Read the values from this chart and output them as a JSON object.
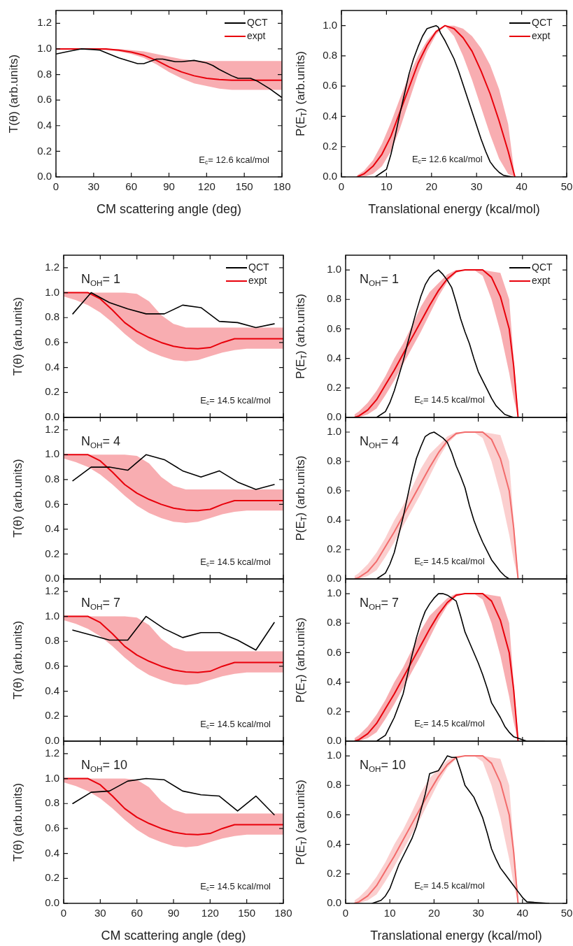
{
  "chart_data": [
    {
      "type": "line",
      "xlabel": "CM scattering angle (deg)",
      "ylabel": "T(θ) (arb.units)",
      "annotations": [
        "E$_{c}$= 12.6 kcal/mol"
      ],
      "legend": "top right",
      "xlim": [
        0,
        180
      ],
      "xticks": [
        0,
        30,
        60,
        90,
        120,
        150,
        180
      ],
      "ylim": [
        0,
        1.3
      ],
      "yticks": [
        {
          "value": 0,
          "label": "0.0"
        },
        {
          "value": 0.2,
          "label": "0.2"
        },
        {
          "value": 0.4,
          "label": "0.4"
        },
        {
          "value": 0.6,
          "label": "0.6"
        },
        {
          "value": 0.8,
          "label": "0.8"
        },
        {
          "value": 1,
          "label": "1.0"
        },
        {
          "value": 1.2,
          "label": "1.2"
        }
      ],
      "series": [
        {
          "name": "QCT",
          "color": "#000000",
          "x": [
            0,
            10,
            20,
            30,
            35,
            40,
            50,
            60,
            65,
            70,
            80,
            85,
            90,
            95,
            100,
            110,
            120,
            125,
            130,
            140,
            145,
            150,
            155,
            160,
            170,
            180
          ],
          "values": [
            0.96,
            0.98,
            1.0,
            0.995,
            0.99,
            0.97,
            0.93,
            0.9,
            0.885,
            0.885,
            0.92,
            0.92,
            0.91,
            0.9,
            0.9,
            0.91,
            0.89,
            0.87,
            0.84,
            0.79,
            0.77,
            0.77,
            0.77,
            0.75,
            0.69,
            0.62
          ]
        },
        {
          "name": "expt",
          "color": "#e8000b",
          "x": [
            0,
            10,
            20,
            30,
            40,
            50,
            60,
            70,
            80,
            90,
            100,
            110,
            120,
            130,
            140,
            150,
            160,
            170,
            180
          ],
          "values": [
            1,
            1,
            1,
            1,
            1,
            0.99,
            0.975,
            0.95,
            0.91,
            0.86,
            0.82,
            0.79,
            0.77,
            0.76,
            0.755,
            0.755,
            0.755,
            0.755,
            0.755
          ],
          "lower": [
            1,
            1,
            1,
            0.995,
            0.99,
            0.98,
            0.96,
            0.93,
            0.88,
            0.82,
            0.77,
            0.73,
            0.71,
            0.69,
            0.68,
            0.68,
            0.68,
            0.68,
            0.68
          ],
          "upper": [
            1,
            1,
            1,
            1,
            1,
            1,
            0.99,
            0.98,
            0.96,
            0.94,
            0.92,
            0.91,
            0.905,
            0.905,
            0.905,
            0.905,
            0.905,
            0.905,
            0.905
          ]
        }
      ]
    },
    {
      "type": "line",
      "xlabel": "Translational energy (kcal/mol)",
      "ylabel": "P(E$_{T}$) (arb.units)",
      "annotations": [
        "E$_{c}$= 12.6 kcal/mol"
      ],
      "legend": "top right",
      "xlim": [
        0,
        50
      ],
      "xticks": [
        0,
        10,
        20,
        30,
        40,
        50
      ],
      "ylim": [
        0,
        1.1
      ],
      "yticks": [
        {
          "value": 0,
          "label": "0.0"
        },
        {
          "value": 0.2,
          "label": "0.2"
        },
        {
          "value": 0.4,
          "label": "0.4"
        },
        {
          "value": 0.6,
          "label": "0.6"
        },
        {
          "value": 0.8,
          "label": "0.8"
        },
        {
          "value": 1,
          "label": "1.0"
        }
      ],
      "series": [
        {
          "name": "QCT",
          "color": "#000000",
          "x": [
            7.5,
            8,
            9,
            10,
            11,
            12,
            13,
            14,
            15,
            16,
            17,
            18,
            19,
            20,
            21,
            21.5,
            22,
            23,
            24,
            25,
            26,
            27,
            28,
            29,
            30,
            31,
            32,
            33,
            34,
            35,
            36,
            37,
            38
          ],
          "values": [
            0,
            0.01,
            0.03,
            0.05,
            0.15,
            0.28,
            0.42,
            0.55,
            0.68,
            0.78,
            0.86,
            0.93,
            0.98,
            0.99,
            1.0,
            0.99,
            0.95,
            0.9,
            0.84,
            0.78,
            0.7,
            0.61,
            0.52,
            0.43,
            0.34,
            0.25,
            0.17,
            0.1,
            0.06,
            0.03,
            0.01,
            0.005,
            0
          ]
        },
        {
          "name": "expt",
          "color": "#e8000b",
          "x": [
            3.5,
            5,
            7,
            9,
            11,
            13,
            15,
            17,
            19,
            21,
            23,
            25,
            27,
            29,
            31,
            33,
            35,
            37,
            38.5
          ],
          "values": [
            0,
            0.02,
            0.07,
            0.15,
            0.27,
            0.43,
            0.59,
            0.75,
            0.87,
            0.96,
            1,
            0.98,
            0.92,
            0.83,
            0.7,
            0.55,
            0.37,
            0.17,
            0
          ],
          "lower": [
            0,
            0,
            0.02,
            0.07,
            0.17,
            0.32,
            0.5,
            0.68,
            0.83,
            0.94,
            1,
            0.93,
            0.8,
            0.64,
            0.46,
            0.28,
            0.12,
            0.02,
            0
          ],
          "upper": [
            0.01,
            0.04,
            0.11,
            0.22,
            0.36,
            0.52,
            0.67,
            0.8,
            0.9,
            0.97,
            1,
            1,
            0.98,
            0.93,
            0.85,
            0.74,
            0.58,
            0.35,
            0
          ]
        }
      ]
    },
    {
      "type": "line",
      "title": "N$_{OH}$= 1",
      "ylabel": "T(θ) (arb.units)",
      "annotations": [
        "E$_{c}$= 14.5 kcal/mol"
      ],
      "legend": "top right",
      "tick_labels": "y",
      "xlim": [
        0,
        180
      ],
      "xticks": [
        0,
        30,
        60,
        90,
        120,
        150,
        180
      ],
      "ylim": [
        0,
        1.3
      ],
      "yticks": [
        {
          "value": 0,
          "label": "0.0"
        },
        {
          "value": 0.2,
          "label": "0.2"
        },
        {
          "value": 0.4,
          "label": "0.4"
        },
        {
          "value": 0.6,
          "label": "0.6"
        },
        {
          "value": 0.8,
          "label": "0.8"
        },
        {
          "value": 1,
          "label": "1.0"
        },
        {
          "value": 1.2,
          "label": "1.2"
        }
      ],
      "series": [
        {
          "name": "QCT",
          "color": "#000000",
          "x": [
            7.5,
            22.5,
            37.5,
            52.5,
            67.5,
            82.5,
            97.5,
            112.5,
            127.5,
            142.5,
            157.5,
            172.5
          ],
          "values": [
            0.83,
            1.0,
            0.92,
            0.87,
            0.83,
            0.83,
            0.9,
            0.88,
            0.77,
            0.76,
            0.72,
            0.75
          ]
        },
        {
          "name": "expt",
          "color": "#e8000b",
          "x": [
            0,
            10,
            20,
            30,
            40,
            50,
            60,
            70,
            80,
            90,
            100,
            110,
            120,
            130,
            140,
            150,
            160,
            170,
            180
          ],
          "values": [
            1,
            1,
            1,
            0.95,
            0.86,
            0.76,
            0.69,
            0.64,
            0.6,
            0.57,
            0.555,
            0.55,
            0.56,
            0.6,
            0.63,
            0.63,
            0.63,
            0.63,
            0.63
          ],
          "lower": [
            0.97,
            0.94,
            0.9,
            0.84,
            0.76,
            0.67,
            0.59,
            0.53,
            0.49,
            0.46,
            0.45,
            0.46,
            0.49,
            0.52,
            0.54,
            0.55,
            0.55,
            0.55,
            0.55
          ],
          "upper": [
            1,
            1,
            1,
            1,
            1,
            1,
            0.99,
            0.93,
            0.82,
            0.75,
            0.72,
            0.72,
            0.72,
            0.72,
            0.72,
            0.72,
            0.72,
            0.72,
            0.72
          ]
        }
      ]
    },
    {
      "type": "line",
      "title": "N$_{OH}$= 1",
      "ylabel": "P(E$_{T}$) (arb.units)",
      "annotations": [
        "E$_{c}$= 14.5 kcal/mol"
      ],
      "legend": "top right",
      "tick_labels": "y",
      "xlim": [
        0,
        50
      ],
      "xticks": [
        0,
        10,
        20,
        30,
        40,
        50
      ],
      "ylim": [
        0,
        1.1
      ],
      "yticks": [
        {
          "value": 0,
          "label": "0.0"
        },
        {
          "value": 0.2,
          "label": "0.2"
        },
        {
          "value": 0.4,
          "label": "0.4"
        },
        {
          "value": 0.6,
          "label": "0.6"
        },
        {
          "value": 0.8,
          "label": "0.8"
        },
        {
          "value": 1,
          "label": "1.0"
        }
      ],
      "series": [
        {
          "name": "QCT",
          "color": "#000000",
          "x": [
            7,
            9,
            10,
            11,
            12,
            13,
            14,
            15,
            16,
            17,
            18,
            19,
            20,
            21,
            22,
            23,
            24,
            25,
            26,
            27,
            28,
            29,
            30,
            31,
            32,
            33,
            34,
            35,
            36,
            37,
            38
          ],
          "values": [
            0,
            0.04,
            0.1,
            0.18,
            0.28,
            0.38,
            0.5,
            0.61,
            0.72,
            0.82,
            0.9,
            0.95,
            0.98,
            1.0,
            0.97,
            0.93,
            0.88,
            0.78,
            0.67,
            0.58,
            0.5,
            0.4,
            0.31,
            0.25,
            0.19,
            0.13,
            0.08,
            0.05,
            0.02,
            0.01,
            0
          ]
        },
        {
          "name": "expt",
          "color": "#e8000b",
          "x": [
            2,
            3,
            5,
            7,
            9,
            11,
            13,
            15,
            17,
            19,
            21,
            23,
            25,
            27,
            29,
            31,
            33,
            35,
            37,
            38,
            39
          ],
          "values": [
            0,
            0.01,
            0.05,
            0.12,
            0.22,
            0.32,
            0.43,
            0.54,
            0.65,
            0.76,
            0.86,
            0.94,
            0.99,
            1,
            1,
            1,
            0.95,
            0.82,
            0.6,
            0.35,
            0
          ],
          "lower": [
            0,
            0,
            0.02,
            0.06,
            0.15,
            0.25,
            0.36,
            0.47,
            0.58,
            0.7,
            0.82,
            0.92,
            0.98,
            1,
            1,
            0.96,
            0.8,
            0.58,
            0.3,
            0.13,
            0
          ],
          "upper": [
            0.02,
            0.04,
            0.1,
            0.18,
            0.28,
            0.4,
            0.5,
            0.62,
            0.75,
            0.85,
            0.91,
            0.97,
            1,
            1,
            1,
            1,
            0.99,
            0.98,
            0.8,
            0.4,
            0.05
          ]
        }
      ]
    },
    {
      "type": "line",
      "title": "N$_{OH}$= 4",
      "ylabel": "T(θ) (arb.units)",
      "annotations": [
        "E$_{c}$= 14.5 kcal/mol"
      ],
      "tick_labels": "y",
      "xlim": [
        0,
        180
      ],
      "xticks": [
        0,
        30,
        60,
        90,
        120,
        150,
        180
      ],
      "ylim": [
        0,
        1.3
      ],
      "yticks": [
        {
          "value": 0,
          "label": "0.0"
        },
        {
          "value": 0.2,
          "label": "0.2"
        },
        {
          "value": 0.4,
          "label": "0.4"
        },
        {
          "value": 0.6,
          "label": "0.6"
        },
        {
          "value": 0.8,
          "label": "0.8"
        },
        {
          "value": 1,
          "label": "1.0"
        },
        {
          "value": 1.2,
          "label": "1.2"
        }
      ],
      "series": [
        {
          "color": "#000000",
          "x": [
            7.5,
            22.5,
            37.5,
            52.5,
            67.5,
            82.5,
            97.5,
            112.5,
            127.5,
            142.5,
            157.5,
            172.5
          ],
          "values": [
            0.79,
            0.9,
            0.9,
            0.875,
            1.0,
            0.96,
            0.87,
            0.82,
            0.87,
            0.78,
            0.72,
            0.76
          ]
        },
        {
          "color": "#e8000b",
          "x": [
            0,
            10,
            20,
            30,
            40,
            50,
            60,
            70,
            80,
            90,
            100,
            110,
            120,
            130,
            140,
            150,
            160,
            170,
            180
          ],
          "values": [
            1,
            1,
            1,
            0.95,
            0.86,
            0.76,
            0.69,
            0.64,
            0.6,
            0.57,
            0.555,
            0.55,
            0.56,
            0.6,
            0.63,
            0.63,
            0.63,
            0.63,
            0.63
          ],
          "lower": [
            0.97,
            0.94,
            0.9,
            0.84,
            0.76,
            0.67,
            0.59,
            0.53,
            0.49,
            0.46,
            0.45,
            0.46,
            0.49,
            0.52,
            0.54,
            0.55,
            0.55,
            0.55,
            0.55
          ],
          "upper": [
            1,
            1,
            1,
            1,
            1,
            1,
            0.99,
            0.93,
            0.82,
            0.75,
            0.72,
            0.72,
            0.72,
            0.72,
            0.72,
            0.72,
            0.72,
            0.72,
            0.72
          ]
        }
      ]
    },
    {
      "type": "line",
      "title": "N$_{OH}$= 4",
      "ylabel": "P(E$_{T}$) (arb.units)",
      "annotations": [
        "E$_{c}$= 14.5 kcal/mol"
      ],
      "tick_labels": "y",
      "xlim": [
        0,
        50
      ],
      "xticks": [
        0,
        10,
        20,
        30,
        40,
        50
      ],
      "ylim": [
        0,
        1.1
      ],
      "yticks": [
        {
          "value": 0,
          "label": "0.0"
        },
        {
          "value": 0.2,
          "label": "0.2"
        },
        {
          "value": 0.4,
          "label": "0.4"
        },
        {
          "value": 0.6,
          "label": "0.6"
        },
        {
          "value": 0.8,
          "label": "0.8"
        },
        {
          "value": 1,
          "label": "1.0"
        }
      ],
      "series": [
        {
          "color": "#000000",
          "x": [
            7,
            9,
            10,
            11,
            12,
            13,
            14,
            15,
            16,
            17,
            18,
            19,
            20,
            21,
            22,
            23,
            24,
            25,
            26,
            27,
            28,
            29,
            30,
            31,
            32,
            33,
            34,
            35,
            36,
            37
          ],
          "values": [
            0,
            0.04,
            0.1,
            0.18,
            0.3,
            0.42,
            0.56,
            0.7,
            0.82,
            0.9,
            0.97,
            0.99,
            1.0,
            0.98,
            0.96,
            0.93,
            0.86,
            0.77,
            0.7,
            0.62,
            0.5,
            0.4,
            0.32,
            0.25,
            0.19,
            0.13,
            0.09,
            0.05,
            0.02,
            0
          ]
        },
        {
          "color": "#f26b6b",
          "x": [
            2,
            3,
            5,
            7,
            9,
            11,
            13,
            15,
            17,
            19,
            21,
            23,
            25,
            27,
            29,
            31,
            33,
            35,
            37,
            38,
            39
          ],
          "values": [
            0,
            0.01,
            0.05,
            0.12,
            0.22,
            0.32,
            0.43,
            0.54,
            0.65,
            0.76,
            0.86,
            0.94,
            0.99,
            1,
            1,
            1,
            0.95,
            0.82,
            0.6,
            0.35,
            0
          ],
          "lower": [
            0,
            0,
            0.02,
            0.06,
            0.15,
            0.25,
            0.36,
            0.47,
            0.58,
            0.7,
            0.82,
            0.92,
            0.98,
            1,
            1,
            0.96,
            0.8,
            0.58,
            0.3,
            0.13,
            0
          ],
          "upper": [
            0.02,
            0.04,
            0.1,
            0.18,
            0.28,
            0.4,
            0.5,
            0.62,
            0.75,
            0.85,
            0.91,
            0.97,
            1,
            1,
            1,
            1,
            0.99,
            0.98,
            0.8,
            0.4,
            0.05
          ]
        }
      ]
    },
    {
      "type": "line",
      "title": "N$_{OH}$= 7",
      "ylabel": "T(θ) (arb.units)",
      "annotations": [
        "E$_{c}$= 14.5 kcal/mol"
      ],
      "tick_labels": "y",
      "xlim": [
        0,
        180
      ],
      "xticks": [
        0,
        30,
        60,
        90,
        120,
        150,
        180
      ],
      "ylim": [
        0,
        1.3
      ],
      "yticks": [
        {
          "value": 0,
          "label": "0.0"
        },
        {
          "value": 0.2,
          "label": "0.2"
        },
        {
          "value": 0.4,
          "label": "0.4"
        },
        {
          "value": 0.6,
          "label": "0.6"
        },
        {
          "value": 0.8,
          "label": "0.8"
        },
        {
          "value": 1,
          "label": "1.0"
        },
        {
          "value": 1.2,
          "label": "1.2"
        }
      ],
      "series": [
        {
          "color": "#000000",
          "x": [
            7.5,
            22.5,
            37.5,
            52.5,
            67.5,
            82.5,
            97.5,
            112.5,
            127.5,
            142.5,
            157.5,
            172.5
          ],
          "values": [
            0.89,
            0.85,
            0.81,
            0.81,
            1.0,
            0.9,
            0.83,
            0.87,
            0.87,
            0.81,
            0.73,
            0.95
          ]
        },
        {
          "color": "#e8000b",
          "x": [
            0,
            10,
            20,
            30,
            40,
            50,
            60,
            70,
            80,
            90,
            100,
            110,
            120,
            130,
            140,
            150,
            160,
            170,
            180
          ],
          "values": [
            1,
            1,
            1,
            0.95,
            0.86,
            0.76,
            0.69,
            0.64,
            0.6,
            0.57,
            0.555,
            0.55,
            0.56,
            0.6,
            0.63,
            0.63,
            0.63,
            0.63,
            0.63
          ],
          "lower": [
            0.97,
            0.94,
            0.9,
            0.84,
            0.76,
            0.67,
            0.59,
            0.53,
            0.49,
            0.46,
            0.45,
            0.46,
            0.49,
            0.52,
            0.54,
            0.55,
            0.55,
            0.55,
            0.55
          ],
          "upper": [
            1,
            1,
            1,
            1,
            1,
            1,
            0.99,
            0.93,
            0.82,
            0.75,
            0.72,
            0.72,
            0.72,
            0.72,
            0.72,
            0.72,
            0.72,
            0.72,
            0.72
          ]
        }
      ]
    },
    {
      "type": "line",
      "title": "N$_{OH}$= 7",
      "ylabel": "P(E$_{T}$) (arb.units)",
      "annotations": [
        "E$_{c}$= 14.5 kcal/mol"
      ],
      "tick_labels": "y",
      "xlim": [
        0,
        50
      ],
      "xticks": [
        0,
        10,
        20,
        30,
        40,
        50
      ],
      "ylim": [
        0,
        1.1
      ],
      "yticks": [
        {
          "value": 0,
          "label": "0.0"
        },
        {
          "value": 0.2,
          "label": "0.2"
        },
        {
          "value": 0.4,
          "label": "0.4"
        },
        {
          "value": 0.6,
          "label": "0.6"
        },
        {
          "value": 0.8,
          "label": "0.8"
        },
        {
          "value": 1,
          "label": "1.0"
        }
      ],
      "series": [
        {
          "color": "#000000",
          "x": [
            7,
            9,
            10,
            11,
            12,
            13,
            14,
            15,
            16,
            17,
            18,
            19,
            20,
            21,
            22,
            23,
            24,
            25,
            26,
            27,
            28,
            29,
            30,
            31,
            32,
            33,
            34,
            35,
            36,
            37,
            38,
            39,
            40,
            41,
            45
          ],
          "values": [
            0,
            0.04,
            0.1,
            0.16,
            0.24,
            0.32,
            0.45,
            0.58,
            0.7,
            0.8,
            0.88,
            0.93,
            0.97,
            1.0,
            1.0,
            0.99,
            0.97,
            0.95,
            0.85,
            0.74,
            0.67,
            0.6,
            0.53,
            0.45,
            0.36,
            0.26,
            0.21,
            0.16,
            0.1,
            0.06,
            0.03,
            0.02,
            0.01,
            0,
            0
          ]
        },
        {
          "color": "#e8000b",
          "x": [
            2,
            3,
            5,
            7,
            9,
            11,
            13,
            15,
            17,
            19,
            21,
            23,
            25,
            27,
            29,
            31,
            33,
            35,
            37,
            38,
            39
          ],
          "values": [
            0,
            0.01,
            0.05,
            0.12,
            0.22,
            0.32,
            0.43,
            0.54,
            0.65,
            0.76,
            0.86,
            0.94,
            0.99,
            1,
            1,
            1,
            0.95,
            0.82,
            0.6,
            0.35,
            0
          ],
          "lower": [
            0,
            0,
            0.02,
            0.06,
            0.15,
            0.25,
            0.36,
            0.47,
            0.58,
            0.7,
            0.82,
            0.92,
            0.98,
            1,
            1,
            0.96,
            0.8,
            0.58,
            0.3,
            0.13,
            0
          ],
          "upper": [
            0.02,
            0.04,
            0.1,
            0.18,
            0.28,
            0.4,
            0.5,
            0.62,
            0.75,
            0.85,
            0.91,
            0.97,
            1,
            1,
            1,
            1,
            0.99,
            0.98,
            0.8,
            0.4,
            0.05
          ]
        }
      ]
    },
    {
      "type": "line",
      "title": "N$_{OH}$= 10",
      "xlabel": "CM scattering angle (deg)",
      "ylabel": "T(θ) (arb.units)",
      "annotations": [
        "E$_{c}$= 14.5 kcal/mol"
      ],
      "xlim": [
        0,
        180
      ],
      "xticks": [
        0,
        30,
        60,
        90,
        120,
        150,
        180
      ],
      "ylim": [
        0,
        1.3
      ],
      "yticks": [
        {
          "value": 0,
          "label": "0.0"
        },
        {
          "value": 0.2,
          "label": "0.2"
        },
        {
          "value": 0.4,
          "label": "0.4"
        },
        {
          "value": 0.6,
          "label": "0.6"
        },
        {
          "value": 0.8,
          "label": "0.8"
        },
        {
          "value": 1,
          "label": "1.0"
        },
        {
          "value": 1.2,
          "label": "1.2"
        }
      ],
      "series": [
        {
          "color": "#000000",
          "x": [
            7.5,
            22.5,
            37.5,
            52.5,
            67.5,
            82.5,
            97.5,
            112.5,
            127.5,
            142.5,
            157.5,
            172.5
          ],
          "values": [
            0.8,
            0.89,
            0.9,
            0.98,
            1.0,
            0.99,
            0.9,
            0.87,
            0.86,
            0.74,
            0.86,
            0.71
          ]
        },
        {
          "color": "#e8000b",
          "x": [
            0,
            10,
            20,
            30,
            40,
            50,
            60,
            70,
            80,
            90,
            100,
            110,
            120,
            130,
            140,
            150,
            160,
            170,
            180
          ],
          "values": [
            1,
            1,
            1,
            0.95,
            0.86,
            0.76,
            0.69,
            0.64,
            0.6,
            0.57,
            0.555,
            0.55,
            0.56,
            0.6,
            0.63,
            0.63,
            0.63,
            0.63,
            0.63
          ],
          "lower": [
            0.97,
            0.94,
            0.9,
            0.84,
            0.76,
            0.67,
            0.59,
            0.53,
            0.49,
            0.46,
            0.45,
            0.46,
            0.49,
            0.52,
            0.54,
            0.55,
            0.55,
            0.55,
            0.55
          ],
          "upper": [
            1,
            1,
            1,
            1,
            1,
            1,
            0.99,
            0.93,
            0.82,
            0.75,
            0.72,
            0.72,
            0.72,
            0.72,
            0.72,
            0.72,
            0.72,
            0.72,
            0.72
          ]
        }
      ]
    },
    {
      "type": "line",
      "title": "N$_{OH}$= 10",
      "xlabel": "Translational energy (kcal/mol)",
      "ylabel": "P(E$_{T}$) (arb.units)",
      "annotations": [
        "E$_{c}$= 14.5 kcal/mol"
      ],
      "xlim": [
        0,
        50
      ],
      "xticks": [
        0,
        10,
        20,
        30,
        40,
        50
      ],
      "ylim": [
        0,
        1.1
      ],
      "yticks": [
        {
          "value": 0,
          "label": "0.0"
        },
        {
          "value": 0.2,
          "label": "0.2"
        },
        {
          "value": 0.4,
          "label": "0.4"
        },
        {
          "value": 0.6,
          "label": "0.6"
        },
        {
          "value": 0.8,
          "label": "0.8"
        },
        {
          "value": 1,
          "label": "1.0"
        }
      ],
      "series": [
        {
          "color": "#000000",
          "x": [
            6,
            8,
            9,
            10,
            11,
            12,
            13,
            14,
            15,
            16,
            17,
            18,
            19,
            20,
            21,
            22,
            23,
            24,
            25,
            26,
            27,
            28,
            29,
            30,
            31,
            32,
            33,
            34,
            35,
            36,
            37,
            38,
            39,
            40,
            41,
            46
          ],
          "values": [
            0,
            0.02,
            0.05,
            0.1,
            0.18,
            0.26,
            0.32,
            0.38,
            0.44,
            0.52,
            0.63,
            0.74,
            0.88,
            0.89,
            0.9,
            0.95,
            1.0,
            0.99,
            0.99,
            0.9,
            0.8,
            0.76,
            0.72,
            0.65,
            0.58,
            0.48,
            0.37,
            0.3,
            0.24,
            0.2,
            0.16,
            0.12,
            0.08,
            0.04,
            0.01,
            0
          ]
        },
        {
          "color": "#f26b6b",
          "x": [
            2,
            3,
            5,
            7,
            9,
            11,
            13,
            15,
            17,
            19,
            21,
            23,
            25,
            27,
            29,
            31,
            33,
            35,
            37,
            38,
            39
          ],
          "values": [
            0,
            0.01,
            0.05,
            0.12,
            0.22,
            0.32,
            0.43,
            0.54,
            0.65,
            0.76,
            0.86,
            0.94,
            0.99,
            1,
            1,
            1,
            0.95,
            0.82,
            0.6,
            0.35,
            0
          ],
          "lower": [
            0,
            0,
            0.02,
            0.06,
            0.15,
            0.25,
            0.36,
            0.47,
            0.58,
            0.7,
            0.82,
            0.92,
            0.98,
            1,
            1,
            0.96,
            0.8,
            0.58,
            0.3,
            0.13,
            0
          ],
          "upper": [
            0.02,
            0.04,
            0.1,
            0.18,
            0.28,
            0.4,
            0.5,
            0.62,
            0.75,
            0.85,
            0.91,
            0.97,
            1,
            1,
            1,
            1,
            0.99,
            0.98,
            0.8,
            0.4,
            0.05
          ]
        }
      ]
    }
  ]
}
